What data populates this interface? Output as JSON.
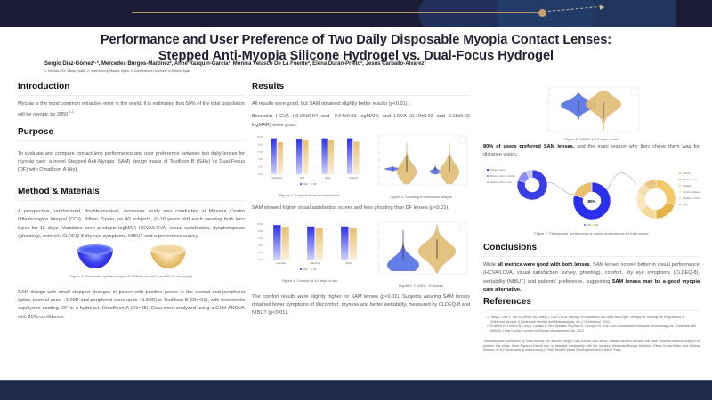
{
  "header": {
    "title_line1": "Performance and User Preference of Two Daily Disposable Myopia Contact Lenses:",
    "title_line2": "Stepped Anti-Myopia Silicone Hydrogel vs. Dual-Focus Hydrogel",
    "authors": "Sergio Díaz-Gómez¹·³, Mercedes Burgos-Martínez², Anne Razquin-García¹, Mónica Velasco De La Fuente², Elena Durán-Prieto², Jesús Carballo-Álvarez³",
    "affiliations": "1. Miranza COI, Bilbao, Spain; 2. mark'ennovy, Madrid, Spain; 3. Complutense University of Madrid, Spain"
  },
  "introduction": {
    "heading": "Introduction",
    "text": "Myopia is the most common refractive error in the world. It is estimated that 50% of the total population will be myopic by 2050.",
    "sup": "1,2"
  },
  "purpose": {
    "heading": "Purpose",
    "text": "To evaluate and compare contact lens performance and user preference between two daily lenses for myopia care: a novel Stepped Anti-Myopia (SAM) design made of Toufilcon B (SiHy) vs Dual-Focus (DF) with Omafilcon A (Hy)."
  },
  "methods": {
    "heading": "Method & Materials",
    "text1": "A prospective, randomized, double-masked, crossover study was conducted at Miranza Centro Oftalmologico Integral (COI), Bilbao, Spain, on 40 subjects, (9-16 years old) each wearing both lens types for 15 days. Variables were photopic logMAR HCVA/LCVA, visual satisfaction, dysphotopsias (ghosting), comfort, CLDEQ-8 dry eye symptoms, NIBUT and a preference survey.",
    "figure1_caption": "Figure 1. Schematic optical designs of SAM lenses (left) and DF lenses (right)",
    "text2": "SAM design with small stepped changes in power with positive power in the central and peripheral optics (central zone +1.00D and peripheral zone up to +1.50D) in Toufilcon B (Dk=91), with biomimetic copolymer coating. DF in a hydrogel, Omafilcon A (Dk=25). Data were analyzed using a GLM ANOVA with 95% confidence."
  },
  "results": {
    "heading": "Results",
    "text1": "All results were good, but SAM obtained slightly better results (p<0.01).",
    "text2": "Binocular HCVA (-0.06±0.04 and -0.04±0.03 logMAR) and LCVA (0.10±0.03 and 0.11±0.02 logMAR) were good.",
    "figure2_caption": "Figure 2. Subjective visual satisfaction",
    "figure3_caption": "Figure 3. Ghosting in perceived images",
    "text3": "SAM showed higher visual satisfaction scores and less ghosting than DF lenses (p<0.01).",
    "figure4_caption": "Figure 4. Comfort at 15 days of use",
    "figure5_caption": "Figure 5. CLDEQ - 8 Scores",
    "text4": "The comfort results were slightly higher for SAM lenses (p<0.01). Subjects wearing SAM lenses obtained fewer symptoms of discomfort, dryness and better wettability, measured by CLDEQ-8 and NIBUT (p<0.01)."
  },
  "right": {
    "figure6_caption": "Figure 6. NIBUT at 15 days of use",
    "pref_bold": "80% of users preferred SAM lenses,",
    "pref_text": " and the main reason why they chose them was for distance vision.",
    "figure7_caption": "Figure 7. Participants' preferences of choice and reasons for their choice",
    "conclusions_heading": "Conclusions",
    "concl_pre": "While ",
    "concl_bold1": "all metrics were good with both lenses",
    "concl_mid": ", SAM lenses scored better in visual performance (HCVA/LCVA, visual satisfaction survey, ghosting), comfort, dry eye symptoms (CLDEQ-8), wettability (NIBUT) and patients' preference, suggesting ",
    "concl_bold2": "SAM lenses may be a good myopia care alternative.",
    "references_heading": "References",
    "references": [
      "Tang J, Liao Y, Yan N, Dereje SB, Wang J, Luo Y, et al. Efficacy of Repeated Low-Level Red-Light Therapy for Slowing the Progression of Childhood Myopia: A Systematic Review and Meta-analysis. Am J Ophthalmol. 2023.",
      "Erdinest N, London N, Levy I, Landau D, Ben Ephraim Noyman D, Levinger N, et al. Low-Concentration Atropine Monotherapy vs. Combined with MiSight 1 Day Contact Lenses for Myopia Management. Vis. 2022."
    ],
    "sponsor": "The study was sponsored by mark'ennovy.The authors Sergio Díaz-Gómez and Jesús Carballo-Álvarez declare that have received financial support to perform this study. Anne Razquin-García has no financial relationship with the industry. Mercedes Burgos Martínez, Elena Durán-Prieto and Mónica Velasco de la Fuente work at mark'ennovy in R&D New Products Development and Clinical Trials."
  },
  "colors": {
    "sam": "#2b2ff0",
    "df": "#e9bf6e",
    "sam_violin": "#5b78e8",
    "df_violin": "#e3bf7c",
    "banner": "#1c1b36",
    "footer": "#1d2a4c"
  },
  "chart_data": [
    {
      "type": "bar",
      "title": "Figure 2. Subjective visual satisfaction",
      "categories": [
        "Distance",
        "Mid",
        "Near",
        "Overall"
      ],
      "series": [
        {
          "name": "SAM",
          "values": [
            9.6,
            9.5,
            9.6,
            9.6
          ]
        },
        {
          "name": "DF",
          "values": [
            8.6,
            9.2,
            9.1,
            8.7
          ]
        }
      ],
      "yticks": [
        "0.00",
        "2.00",
        "4.00",
        "6.00",
        "8.00",
        "10.00"
      ],
      "ylim": [
        0,
        10
      ],
      "legend": "bottom"
    },
    {
      "type": "violin",
      "title": "Figure 3. Ghosting in perceived images",
      "groups": [
        "SAM",
        "DF",
        "SAM",
        "DF"
      ],
      "medians": [
        0.3,
        3.0,
        0.3,
        3.0
      ],
      "ylim": [
        0,
        10
      ],
      "legend": "top-right"
    },
    {
      "type": "bar",
      "title": "Figure 4. Comfort at 15 days of use",
      "categories": [
        "Insertion",
        "Daytime",
        "EOD"
      ],
      "series": [
        {
          "name": "SAM",
          "values": [
            9.7,
            9.3,
            9.3
          ]
        },
        {
          "name": "DF",
          "values": [
            9.2,
            9.0,
            8.9
          ]
        }
      ],
      "yticks": [
        "0.00",
        "2.00",
        "4.00",
        "6.00",
        "8.00",
        "10.00"
      ],
      "ylim": [
        0,
        10
      ],
      "legend": "bottom"
    },
    {
      "type": "violin",
      "title": "Figure 5. CLDEQ - 8 Scores",
      "groups": [
        "SAM",
        "DF"
      ],
      "medians": [
        1.5,
        4.5
      ],
      "ylim": [
        0,
        12
      ],
      "legend": "top-right"
    },
    {
      "type": "violin",
      "title": "Figure 6. NIBUT at 15 days of use",
      "groups": [
        "SAM",
        "DF"
      ],
      "medians": [
        12,
        12
      ],
      "ylim": [
        0,
        20
      ],
      "legend": "top-right"
    },
    {
      "type": "pie",
      "title": "Figure 7. Participants' preferences of choice and reasons for their choice",
      "main": {
        "labels": [
          "SAM",
          "DF"
        ],
        "values": [
          80,
          20
        ],
        "center_label": "80%"
      },
      "sam_reasons": {
        "labels": [
          "Distance Vision",
          "Distance Vision + Comfort",
          "Distance Vision + Fog..."
        ],
        "values": [
          80,
          13,
          7
        ]
      },
      "df_reasons": {
        "labels": [
          "Comfort",
          "Distance vision",
          "Handling",
          "Comfort + Distance vision",
          "Handling + Comfort",
          "Other"
        ],
        "values": [
          30,
          20,
          15,
          15,
          10,
          10
        ]
      }
    }
  ]
}
